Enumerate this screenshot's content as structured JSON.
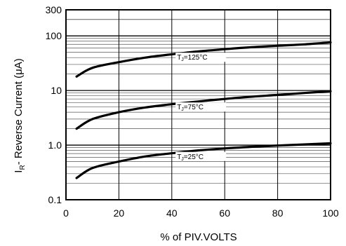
{
  "chart_data": {
    "type": "line",
    "xlabel": "% of PIV.VOLTS",
    "ylabel_main": "I",
    "ylabel_sub": "R",
    "ylabel_rest": "- Reverse Current (μA)",
    "x_scale": "linear",
    "y_scale": "log",
    "xlim": [
      0,
      100
    ],
    "ylim": [
      0.1,
      300
    ],
    "grid": true,
    "x_ticks": [
      {
        "value": 0,
        "label": "0"
      },
      {
        "value": 20,
        "label": "20"
      },
      {
        "value": 40,
        "label": "40"
      },
      {
        "value": 60,
        "label": "60"
      },
      {
        "value": 80,
        "label": "80"
      },
      {
        "value": 100,
        "label": "100"
      }
    ],
    "y_ticks": [
      {
        "value": 0.1,
        "label": "0.1"
      },
      {
        "value": 1,
        "label": "1.0"
      },
      {
        "value": 10,
        "label": "10"
      },
      {
        "value": 100,
        "label": "100"
      },
      {
        "value": 300,
        "label": "300"
      }
    ],
    "series": [
      {
        "label_main": "T",
        "label_sub": "J",
        "label_rest": "=125°C",
        "x": [
          4,
          10,
          20,
          30,
          40,
          50,
          60,
          70,
          80,
          90,
          100
        ],
        "y": [
          18,
          26,
          33,
          40,
          46,
          52,
          57,
          62,
          66,
          70,
          76
        ]
      },
      {
        "label_main": "T",
        "label_sub": "J",
        "label_rest": "=75°C",
        "x": [
          4,
          10,
          20,
          30,
          40,
          50,
          60,
          70,
          80,
          90,
          100
        ],
        "y": [
          2.0,
          3.0,
          4.0,
          4.9,
          5.6,
          6.3,
          7.0,
          7.7,
          8.3,
          9.0,
          9.7
        ]
      },
      {
        "label_main": "T",
        "label_sub": "J",
        "label_rest": "=25°C",
        "x": [
          4,
          10,
          20,
          30,
          40,
          50,
          60,
          70,
          80,
          90,
          100
        ],
        "y": [
          0.25,
          0.38,
          0.5,
          0.62,
          0.71,
          0.8,
          0.87,
          0.93,
          0.98,
          1.03,
          1.08
        ]
      }
    ],
    "annotation_x": 60
  }
}
